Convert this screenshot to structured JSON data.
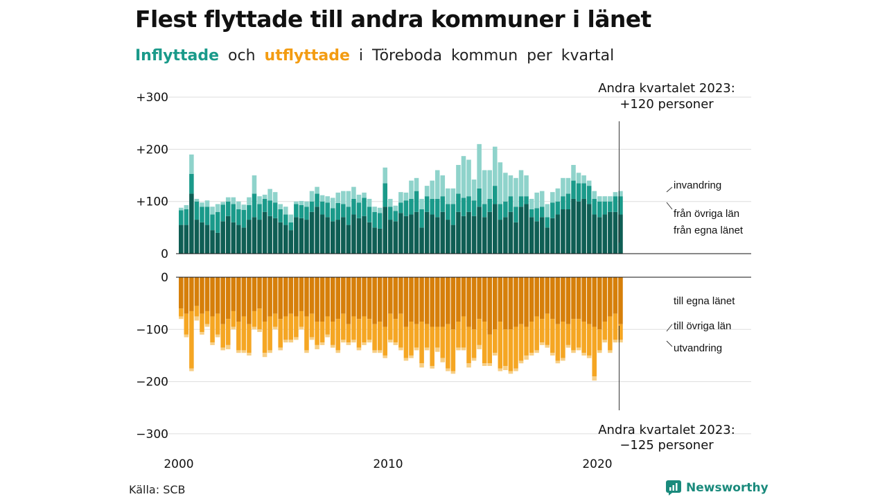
{
  "title": "Flest flyttade till andra kommuner i länet",
  "subtitle": {
    "inflyttade": "Inflyttade",
    "och": "och",
    "utflyttade": "utflyttade",
    "rest": "i Töreboda kommun per kvartal"
  },
  "source": "Källa: SCB",
  "brand": "Newsworthy",
  "colors": {
    "in_own": "#0f5e54",
    "in_other": "#1a9a8a",
    "in_imm": "#8fd3cb",
    "out_own": "#d67f0a",
    "out_other": "#f5a623",
    "out_emi": "#f7cf86",
    "grid": "#dddddd",
    "brand": "#1a8a7c"
  },
  "chart_data": {
    "type": "bar",
    "stacked": true,
    "diverging": true,
    "x_start": "2000 Q1",
    "x_end": "2023 Q2",
    "x_ticks": [
      "2000",
      "2010",
      "2020"
    ],
    "y_ticks_top": [
      "+300",
      "+200",
      "+100",
      "0"
    ],
    "y_ticks_bottom": [
      "0",
      "−100",
      "−200",
      "−300"
    ],
    "ylim_top": [
      0,
      300
    ],
    "ylim_bottom": [
      -300,
      0
    ],
    "annotations": {
      "top": [
        "Andra kvartalet 2023:",
        "+120 personer"
      ],
      "bottom": [
        "Andra kvartalet 2023:",
        "−125 personer"
      ]
    },
    "series_in": [
      {
        "name": "från egna länet",
        "values": [
          55,
          55,
          115,
          65,
          60,
          55,
          45,
          40,
          62,
          72,
          60,
          55,
          50,
          65,
          70,
          65,
          80,
          72,
          68,
          60,
          55,
          45,
          70,
          68,
          65,
          80,
          90,
          75,
          70,
          62,
          65,
          70,
          55,
          75,
          68,
          72,
          60,
          50,
          48,
          90,
          65,
          62,
          78,
          72,
          75,
          80,
          50,
          80,
          75,
          70,
          80,
          65,
          55,
          80,
          72,
          80,
          72,
          90,
          70,
          80,
          95,
          65,
          70,
          80,
          60,
          90,
          95,
          70,
          62,
          70,
          50,
          68,
          75,
          85,
          85,
          105,
          100,
          105,
          95,
          75,
          70,
          75,
          80,
          80,
          75
        ]
      },
      {
        "name": "från övriga län",
        "values": [
          28,
          30,
          38,
          35,
          30,
          35,
          30,
          40,
          32,
          28,
          35,
          30,
          34,
          28,
          45,
          30,
          25,
          30,
          30,
          25,
          20,
          15,
          25,
          25,
          25,
          20,
          25,
          25,
          28,
          25,
          32,
          25,
          35,
          30,
          30,
          35,
          30,
          30,
          30,
          45,
          25,
          20,
          20,
          30,
          30,
          40,
          35,
          30,
          30,
          35,
          30,
          30,
          40,
          35,
          35,
          30,
          30,
          35,
          25,
          25,
          35,
          30,
          30,
          30,
          30,
          20,
          15,
          15,
          25,
          20,
          20,
          30,
          25,
          25,
          30,
          35,
          35,
          30,
          35,
          30,
          30,
          25,
          20,
          30,
          35
        ]
      },
      {
        "name": "invandring",
        "values": [
          5,
          8,
          37,
          5,
          8,
          12,
          15,
          15,
          5,
          8,
          13,
          15,
          10,
          15,
          35,
          15,
          8,
          22,
          20,
          10,
          15,
          15,
          5,
          8,
          10,
          20,
          13,
          12,
          12,
          20,
          20,
          25,
          30,
          23,
          15,
          10,
          15,
          10,
          10,
          30,
          15,
          10,
          20,
          15,
          35,
          25,
          20,
          20,
          35,
          55,
          40,
          30,
          30,
          55,
          80,
          70,
          40,
          85,
          65,
          55,
          75,
          80,
          55,
          40,
          55,
          50,
          40,
          20,
          30,
          30,
          25,
          20,
          25,
          35,
          30,
          30,
          20,
          15,
          10,
          15,
          10,
          10,
          10,
          8,
          10
        ]
      }
    ],
    "series_out": [
      {
        "name": "till egna länet",
        "values": [
          60,
          70,
          65,
          55,
          70,
          65,
          75,
          70,
          90,
          80,
          65,
          85,
          75,
          90,
          65,
          60,
          85,
          75,
          70,
          80,
          75,
          70,
          75,
          65,
          75,
          70,
          85,
          85,
          75,
          85,
          80,
          70,
          90,
          75,
          80,
          75,
          80,
          90,
          85,
          95,
          70,
          80,
          70,
          95,
          85,
          90,
          85,
          90,
          95,
          95,
          95,
          90,
          100,
          85,
          75,
          95,
          100,
          80,
          85,
          110,
          100,
          85,
          100,
          100,
          95,
          90,
          95,
          85,
          75,
          80,
          70,
          80,
          90,
          85,
          90,
          80,
          80,
          85,
          90,
          95,
          100,
          85,
          75,
          70,
          90
        ]
      },
      {
        "name": "till övriga län",
        "values": [
          15,
          40,
          110,
          20,
          35,
          25,
          50,
          40,
          45,
          50,
          30,
          55,
          65,
          55,
          30,
          40,
          60,
          65,
          25,
          55,
          45,
          50,
          40,
          30,
          65,
          45,
          45,
          40,
          35,
          45,
          60,
          50,
          35,
          45,
          55,
          50,
          40,
          50,
          55,
          55,
          50,
          45,
          65,
          60,
          65,
          45,
          80,
          45,
          75,
          40,
          60,
          85,
          80,
          50,
          60,
          70,
          55,
          50,
          80,
          55,
          45,
          90,
          70,
          80,
          80,
          70,
          55,
          60,
          65,
          45,
          60,
          65,
          70,
          70,
          40,
          60,
          55,
          60,
          60,
          95,
          40,
          35,
          65,
          50,
          30
        ]
      },
      {
        "name": "utvandring",
        "values": [
          5,
          5,
          5,
          8,
          5,
          5,
          5,
          5,
          5,
          8,
          5,
          5,
          5,
          5,
          5,
          5,
          8,
          5,
          5,
          5,
          5,
          5,
          5,
          5,
          5,
          5,
          8,
          5,
          5,
          5,
          5,
          5,
          5,
          5,
          5,
          5,
          5,
          5,
          5,
          5,
          5,
          5,
          5,
          5,
          5,
          5,
          8,
          5,
          5,
          8,
          8,
          5,
          5,
          5,
          5,
          8,
          5,
          8,
          5,
          5,
          5,
          5,
          8,
          5,
          5,
          5,
          8,
          5,
          5,
          5,
          5,
          5,
          5,
          5,
          5,
          5,
          5,
          5,
          5,
          8,
          5,
          5,
          5,
          5,
          5
        ]
      }
    ],
    "legend_in": [
      "invandring",
      "från övriga län",
      "från egna länet"
    ],
    "legend_out": [
      "till egna länet",
      "till övriga län",
      "utvandring"
    ]
  }
}
